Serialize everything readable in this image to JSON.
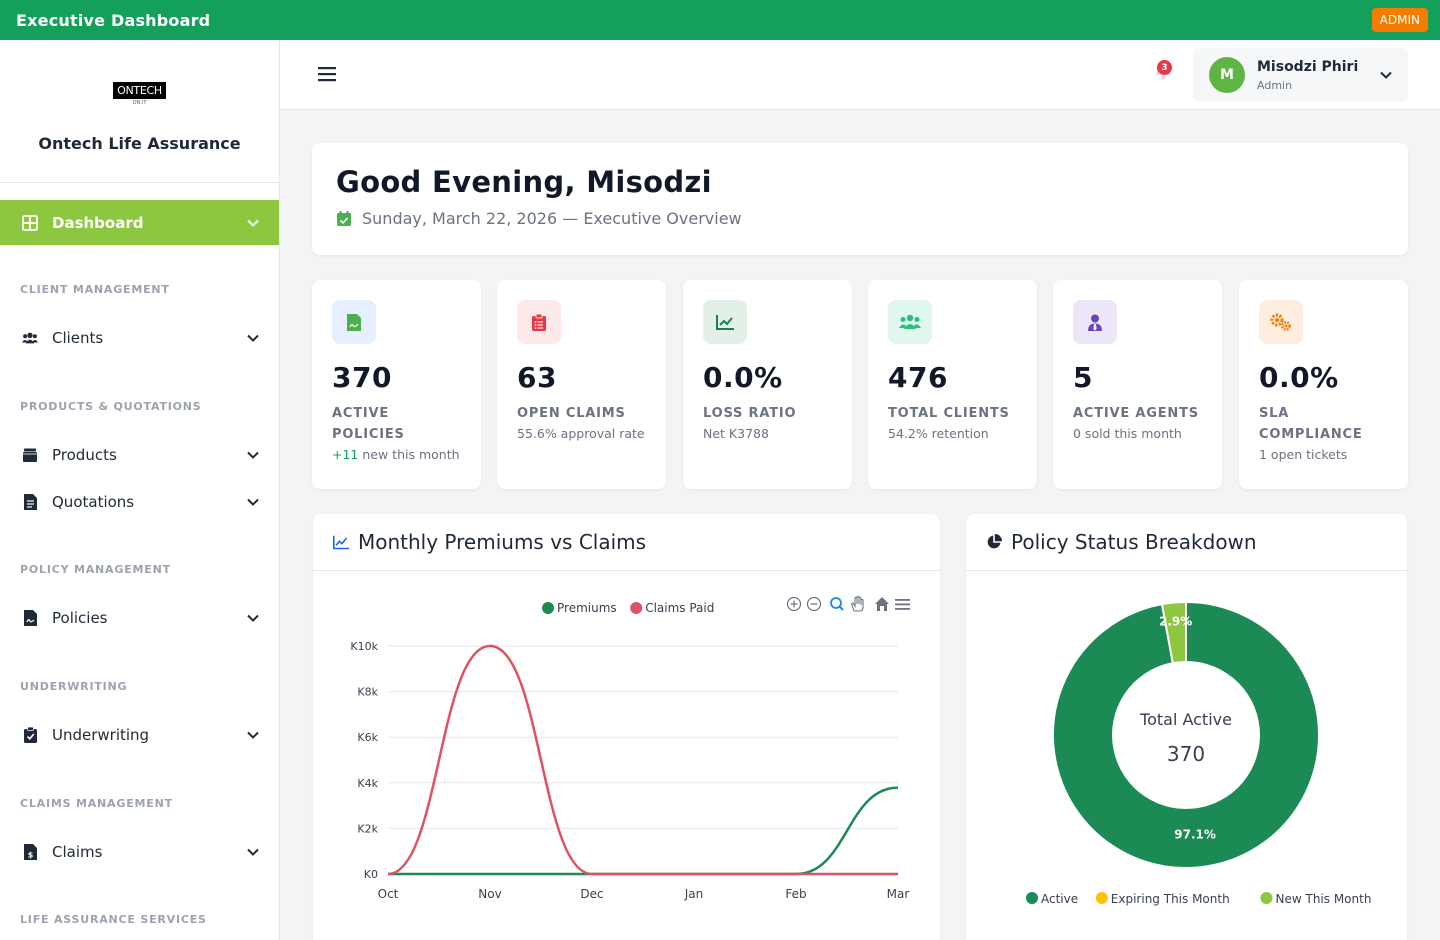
{
  "topbar": {
    "title": "Executive Dashboard",
    "badge": "ADMIN"
  },
  "sidebar": {
    "logo_text": "ONTECH",
    "logo_sub": "ON.IT",
    "company": "Ontech Life Assurance",
    "active_item": "Dashboard",
    "sections": {
      "client_management": "CLIENT MANAGEMENT",
      "products_quotations": "PRODUCTS & QUOTATIONS",
      "policy_management": "POLICY MANAGEMENT",
      "underwriting": "UNDERWRITING",
      "claims_management": "CLAIMS MANAGEMENT",
      "life_assurance": "LIFE ASSURANCE SERVICES"
    },
    "items": {
      "clients": "Clients",
      "products": "Products",
      "quotations": "Quotations",
      "policies": "Policies",
      "underwriting": "Underwriting",
      "claims": "Claims"
    }
  },
  "header": {
    "notification_count": "3",
    "user_initial": "M",
    "user_name": "Misodzi Phiri",
    "user_role": "Admin"
  },
  "greeting": {
    "title": "Good Evening, Misodzi",
    "subtitle": "Sunday, March 22, 2026 — Executive Overview"
  },
  "stats": [
    {
      "value": "370",
      "label": "ACTIVE POLICIES",
      "sub_highlight": "+11",
      "sub": " new this month",
      "icon": "file-contract-icon",
      "color": "#4caf50",
      "bg": "#e6efff"
    },
    {
      "value": "63",
      "label": "OPEN CLAIMS",
      "sub_highlight": "",
      "sub": "55.6% approval rate",
      "icon": "clipboard-list-icon",
      "color": "#e53946",
      "bg": "#fde8ea"
    },
    {
      "value": "0.0%",
      "label": "LOSS RATIO",
      "sub_highlight": "",
      "sub": "Net K3788",
      "icon": "chart-line-icon",
      "color": "#1b7f4e",
      "bg": "#e2f0e8"
    },
    {
      "value": "476",
      "label": "TOTAL CLIENTS",
      "sub_highlight": "",
      "sub": "54.2% retention",
      "icon": "users-icon",
      "color": "#2bbf7e",
      "bg": "#dff7ee"
    },
    {
      "value": "5",
      "label": "ACTIVE AGENTS",
      "sub_highlight": "",
      "sub": "0 sold this month",
      "icon": "user-tie-icon",
      "color": "#6f42c1",
      "bg": "#ece6f8"
    },
    {
      "value": "0.0%",
      "label": "SLA COMPLIANCE",
      "sub_highlight": "",
      "sub": "1 open tickets",
      "icon": "cogs-icon",
      "color": "#f57c00",
      "bg": "#fdeee0"
    }
  ],
  "panels": {
    "line_title": "Monthly Premiums vs Claims",
    "donut_title": "Policy Status Breakdown"
  },
  "chart_data": [
    {
      "type": "line",
      "title": "Monthly Premiums vs Claims",
      "categories": [
        "Oct",
        "Nov",
        "Dec",
        "Jan",
        "Feb",
        "Mar"
      ],
      "y_ticks": [
        "K0",
        "K2k",
        "K4k",
        "K6k",
        "K8k",
        "K10k"
      ],
      "ylim": [
        0,
        10000
      ],
      "grid": true,
      "legend_position": "top",
      "series": [
        {
          "name": "Premiums",
          "color": "#1b8a55",
          "values": [
            0,
            0,
            0,
            0,
            0,
            3788
          ]
        },
        {
          "name": "Claims Paid",
          "color": "#e05263",
          "values": [
            0,
            10000,
            0,
            0,
            0,
            0
          ]
        }
      ]
    },
    {
      "type": "pie",
      "title": "Policy Status Breakdown",
      "center_label": "Total Active",
      "center_value": "370",
      "legend_position": "bottom",
      "slices": [
        {
          "name": "Active",
          "value": 97.1,
          "label": "97.1%",
          "color": "#1b8a55"
        },
        {
          "name": "Expiring This Month",
          "value": 0,
          "label": "",
          "color": "#ffc107"
        },
        {
          "name": "New This Month",
          "value": 2.9,
          "label": "2.9%",
          "color": "#8dc63f"
        }
      ]
    }
  ]
}
